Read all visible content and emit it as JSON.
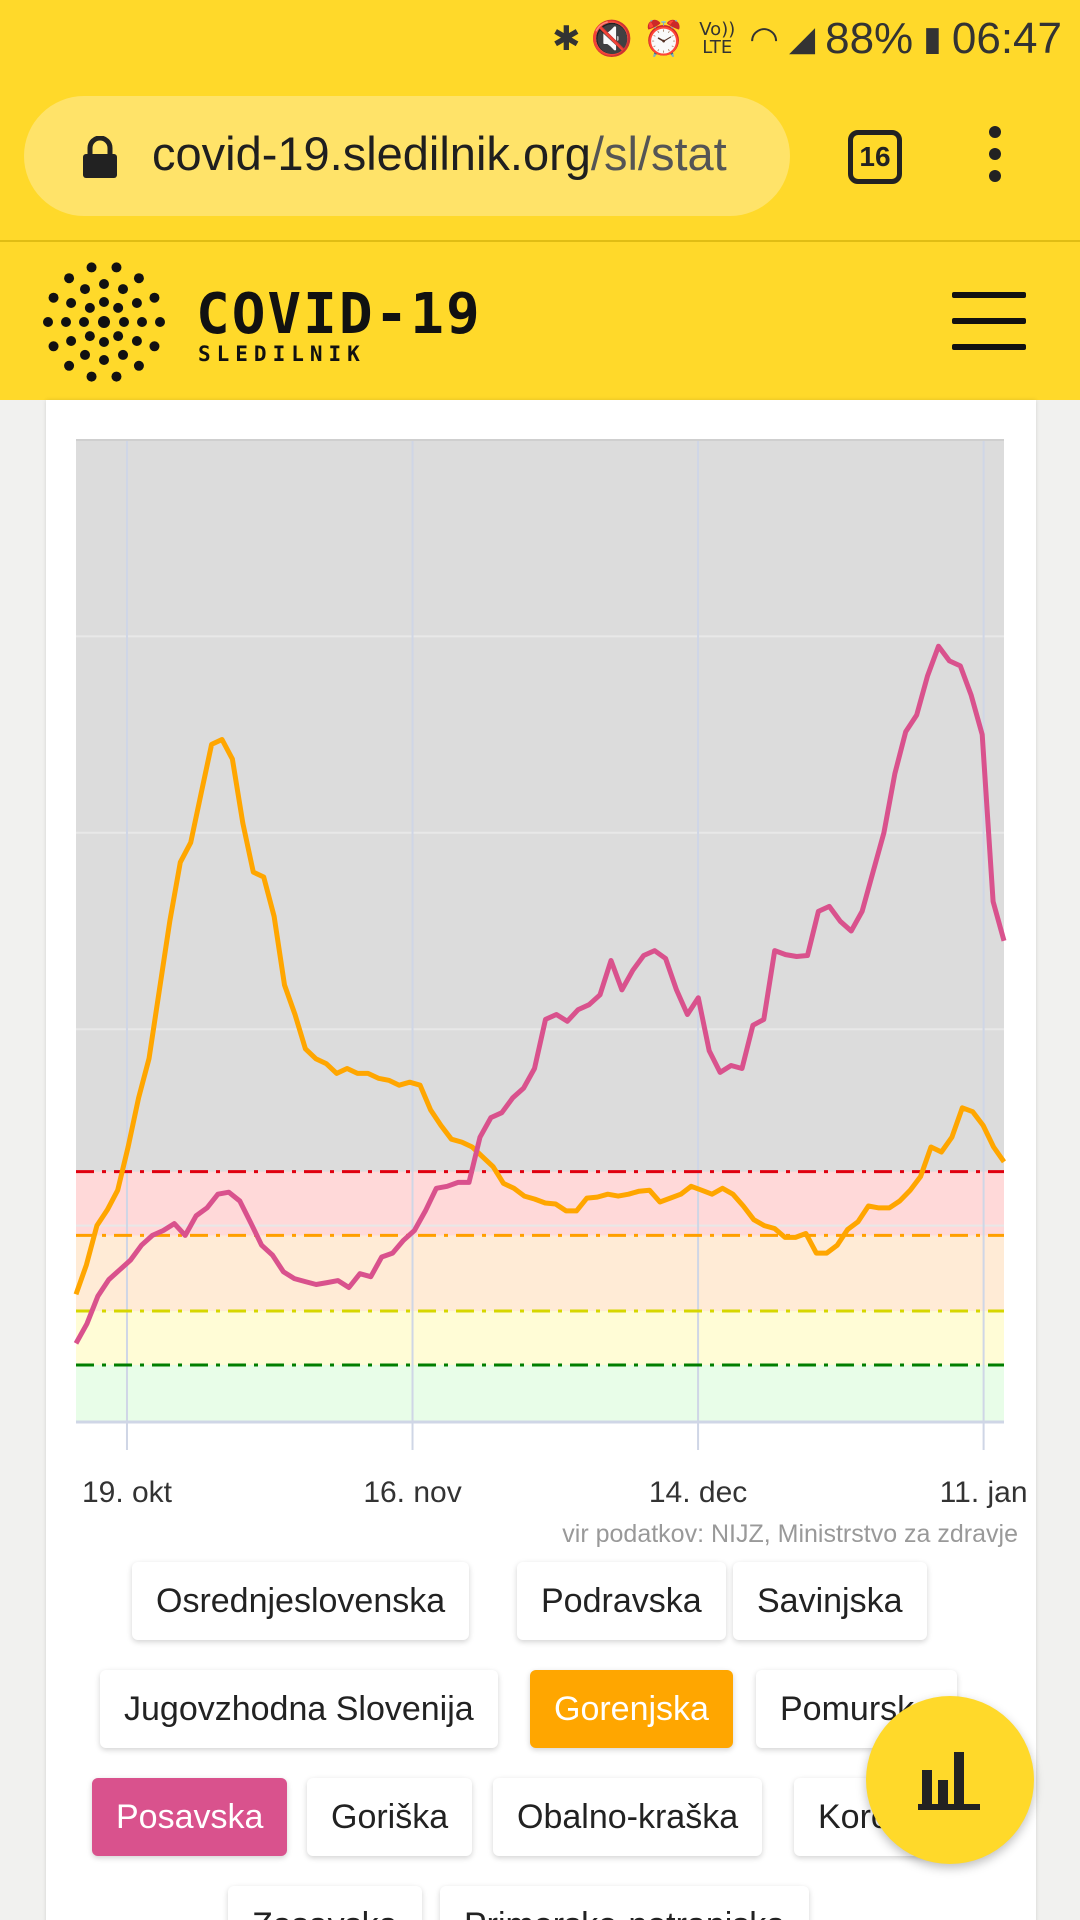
{
  "status_bar": {
    "icons": [
      "bluetooth-icon",
      "mute-icon",
      "alarm-icon",
      "volte-icon",
      "wifi-icon",
      "signal-icon",
      "battery-icon"
    ],
    "volte_label": "Vo)) LTE",
    "battery": "88%",
    "time": "06:47"
  },
  "browser": {
    "url_host": "covid-19.sledilnik.org",
    "url_path": "/sl/stat",
    "tab_count": "16"
  },
  "site": {
    "title": "COVID-19",
    "subtitle": "SLEDILNIK"
  },
  "chart_data": {
    "type": "line",
    "x_tick_labels": [
      "19. okt",
      "16. nov",
      "14. dec",
      "11. jan"
    ],
    "x_tick_dates": [
      "2020-10-19",
      "2020-11-16",
      "2020-12-14",
      "2021-01-11"
    ],
    "x_range": [
      "2020-10-14",
      "2021-01-13"
    ],
    "y_range": [
      0,
      1
    ],
    "grid": true,
    "legend": "none",
    "thresholds": [
      {
        "level": 0.255,
        "color": "#e0000f"
      },
      {
        "level": 0.19,
        "color": "#ff9f00"
      },
      {
        "level": 0.113,
        "color": "#d6d600"
      },
      {
        "level": 0.058,
        "color": "#007e00"
      }
    ],
    "bands": [
      {
        "from": 0.19,
        "to": 0.255,
        "color": "#ffd9d9"
      },
      {
        "from": 0.113,
        "to": 0.19,
        "color": "#ffebd6"
      },
      {
        "from": 0.058,
        "to": 0.113,
        "color": "#fffcd6"
      },
      {
        "from": 0,
        "to": 0.058,
        "color": "#e8fde8"
      }
    ],
    "series": [
      {
        "color": "#ffa600",
        "values": [
          0.13,
          0.16,
          0.2,
          0.216,
          0.236,
          0.28,
          0.33,
          0.37,
          0.44,
          0.51,
          0.57,
          0.59,
          0.64,
          0.69,
          0.695,
          0.675,
          0.61,
          0.56,
          0.555,
          0.515,
          0.445,
          0.415,
          0.38,
          0.37,
          0.365,
          0.355,
          0.36,
          0.355,
          0.355,
          0.35,
          0.348,
          0.343,
          0.346,
          0.343,
          0.318,
          0.302,
          0.288,
          0.285,
          0.28,
          0.27,
          0.26,
          0.243,
          0.238,
          0.23,
          0.227,
          0.223,
          0.222,
          0.215,
          0.215,
          0.228,
          0.229,
          0.232,
          0.23,
          0.232,
          0.235,
          0.236,
          0.224,
          0.228,
          0.232,
          0.24,
          0.236,
          0.232,
          0.238,
          0.232,
          0.22,
          0.206,
          0.2,
          0.197,
          0.188,
          0.188,
          0.192,
          0.172,
          0.172,
          0.18,
          0.196,
          0.204,
          0.22,
          0.218,
          0.218,
          0.225,
          0.236,
          0.25,
          0.28,
          0.275,
          0.29,
          0.32,
          0.316,
          0.302,
          0.28,
          0.265
        ]
      },
      {
        "color": "#d9528d",
        "values": [
          0.08,
          0.1,
          0.128,
          0.145,
          0.155,
          0.165,
          0.18,
          0.19,
          0.195,
          0.202,
          0.19,
          0.21,
          0.218,
          0.232,
          0.234,
          0.225,
          0.203,
          0.18,
          0.17,
          0.153,
          0.146,
          0.143,
          0.14,
          0.142,
          0.144,
          0.137,
          0.151,
          0.148,
          0.168,
          0.172,
          0.185,
          0.195,
          0.215,
          0.238,
          0.24,
          0.244,
          0.244,
          0.29,
          0.31,
          0.315,
          0.33,
          0.34,
          0.36,
          0.41,
          0.415,
          0.408,
          0.42,
          0.425,
          0.435,
          0.47,
          0.44,
          0.46,
          0.475,
          0.48,
          0.472,
          0.44,
          0.415,
          0.432,
          0.378,
          0.356,
          0.363,
          0.36,
          0.404,
          0.41,
          0.48,
          0.476,
          0.474,
          0.475,
          0.52,
          0.525,
          0.51,
          0.5,
          0.52,
          0.56,
          0.6,
          0.66,
          0.703,
          0.72,
          0.76,
          0.79,
          0.775,
          0.77,
          0.74,
          0.7,
          0.53,
          0.49
        ]
      }
    ]
  },
  "source_text": "vir podatkov: NIJZ, Ministrstvo za zdravje",
  "regions": [
    {
      "label": "Osrednjeslovenska",
      "state": "off"
    },
    {
      "label": "Podravska",
      "state": "off"
    },
    {
      "label": "Savinjska",
      "state": "off"
    },
    {
      "label": "Jugovzhodna Slovenija",
      "state": "off"
    },
    {
      "label": "Gorenjska",
      "state": "orange"
    },
    {
      "label": "Pomurska",
      "state": "off"
    },
    {
      "label": "Posavska",
      "state": "pink"
    },
    {
      "label": "Goriška",
      "state": "off"
    },
    {
      "label": "Obalno-kraška",
      "state": "off"
    },
    {
      "label": "Koroška",
      "state": "off"
    },
    {
      "label": "Zasavska",
      "state": "off"
    },
    {
      "label": "Primorsko-notranjska",
      "state": "off"
    }
  ],
  "fab_icon": "bar-chart-icon"
}
